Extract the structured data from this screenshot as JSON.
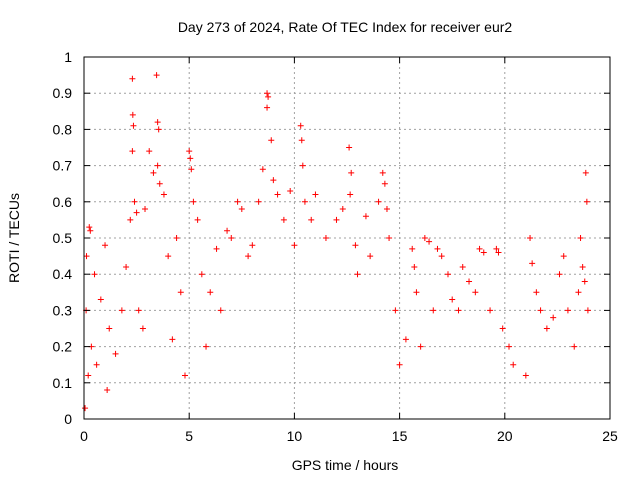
{
  "chart_data": {
    "type": "scatter",
    "title": "Day 273 of 2024, Rate Of TEC Index for receiver eur2",
    "xlabel": "GPS time / hours",
    "ylabel": "ROTI / TECUs",
    "xlim": [
      0,
      25
    ],
    "ylim": [
      0,
      1
    ],
    "xticks": [
      0,
      5,
      10,
      15,
      20,
      25
    ],
    "yticks": [
      0,
      0.1,
      0.2,
      0.3,
      0.4,
      0.5,
      0.6,
      0.7,
      0.8,
      0.9,
      1
    ],
    "xtick_labels": [
      "0",
      "5",
      "10",
      "15",
      "20",
      "25"
    ],
    "ytick_labels": [
      "0",
      "0.1",
      "0.2",
      "0.3",
      "0.4",
      "0.5",
      "0.6",
      "0.7",
      "0.8",
      "0.9",
      "1"
    ],
    "grid": true,
    "marker": "+",
    "color": "#ff0000",
    "series": [
      {
        "points": [
          [
            0.05,
            0.03
          ],
          [
            0.1,
            0.3
          ],
          [
            0.12,
            0.45
          ],
          [
            0.2,
            0.12
          ],
          [
            0.25,
            0.53
          ],
          [
            0.3,
            0.52
          ],
          [
            0.35,
            0.2
          ],
          [
            0.5,
            0.4
          ],
          [
            0.6,
            0.15
          ],
          [
            0.8,
            0.33
          ],
          [
            1.0,
            0.48
          ],
          [
            1.1,
            0.08
          ],
          [
            1.2,
            0.25
          ],
          [
            1.5,
            0.18
          ],
          [
            1.8,
            0.3
          ],
          [
            2.0,
            0.42
          ],
          [
            2.2,
            0.55
          ],
          [
            2.3,
            0.94
          ],
          [
            2.32,
            0.84
          ],
          [
            2.35,
            0.81
          ],
          [
            2.3,
            0.74
          ],
          [
            2.4,
            0.6
          ],
          [
            2.5,
            0.57
          ],
          [
            2.6,
            0.3
          ],
          [
            2.8,
            0.25
          ],
          [
            2.9,
            0.58
          ],
          [
            3.1,
            0.74
          ],
          [
            3.3,
            0.68
          ],
          [
            3.45,
            0.95
          ],
          [
            3.5,
            0.82
          ],
          [
            3.55,
            0.8
          ],
          [
            3.5,
            0.7
          ],
          [
            3.6,
            0.65
          ],
          [
            3.8,
            0.62
          ],
          [
            4.0,
            0.45
          ],
          [
            4.2,
            0.22
          ],
          [
            4.4,
            0.5
          ],
          [
            4.6,
            0.35
          ],
          [
            4.8,
            0.12
          ],
          [
            5.0,
            0.74
          ],
          [
            5.05,
            0.72
          ],
          [
            5.1,
            0.69
          ],
          [
            5.2,
            0.6
          ],
          [
            5.4,
            0.55
          ],
          [
            5.6,
            0.4
          ],
          [
            5.8,
            0.2
          ],
          [
            6.0,
            0.35
          ],
          [
            6.3,
            0.47
          ],
          [
            6.5,
            0.3
          ],
          [
            6.8,
            0.52
          ],
          [
            7.0,
            0.5
          ],
          [
            7.3,
            0.6
          ],
          [
            7.5,
            0.58
          ],
          [
            7.8,
            0.45
          ],
          [
            8.0,
            0.48
          ],
          [
            8.3,
            0.6
          ],
          [
            8.5,
            0.69
          ],
          [
            8.7,
            0.9
          ],
          [
            8.75,
            0.89
          ],
          [
            8.7,
            0.86
          ],
          [
            8.9,
            0.77
          ],
          [
            9.0,
            0.66
          ],
          [
            9.2,
            0.62
          ],
          [
            9.5,
            0.55
          ],
          [
            9.8,
            0.63
          ],
          [
            10.0,
            0.48
          ],
          [
            10.3,
            0.81
          ],
          [
            10.35,
            0.77
          ],
          [
            10.4,
            0.7
          ],
          [
            10.5,
            0.6
          ],
          [
            10.8,
            0.55
          ],
          [
            11.0,
            0.62
          ],
          [
            11.5,
            0.5
          ],
          [
            12.0,
            0.55
          ],
          [
            12.3,
            0.58
          ],
          [
            12.6,
            0.75
          ],
          [
            12.7,
            0.68
          ],
          [
            12.65,
            0.62
          ],
          [
            12.9,
            0.48
          ],
          [
            13.0,
            0.4
          ],
          [
            13.4,
            0.56
          ],
          [
            13.6,
            0.45
          ],
          [
            14.0,
            0.6
          ],
          [
            14.2,
            0.68
          ],
          [
            14.3,
            0.65
          ],
          [
            14.4,
            0.58
          ],
          [
            14.5,
            0.5
          ],
          [
            14.8,
            0.3
          ],
          [
            15.0,
            0.15
          ],
          [
            15.3,
            0.22
          ],
          [
            15.6,
            0.47
          ],
          [
            15.7,
            0.42
          ],
          [
            15.8,
            0.35
          ],
          [
            16.0,
            0.2
          ],
          [
            16.2,
            0.5
          ],
          [
            16.4,
            0.49
          ],
          [
            16.6,
            0.3
          ],
          [
            16.8,
            0.47
          ],
          [
            17.0,
            0.45
          ],
          [
            17.3,
            0.4
          ],
          [
            17.5,
            0.33
          ],
          [
            17.8,
            0.3
          ],
          [
            18.0,
            0.42
          ],
          [
            18.3,
            0.38
          ],
          [
            18.6,
            0.35
          ],
          [
            18.8,
            0.47
          ],
          [
            19.0,
            0.46
          ],
          [
            19.3,
            0.3
          ],
          [
            19.6,
            0.47
          ],
          [
            19.7,
            0.46
          ],
          [
            19.9,
            0.25
          ],
          [
            20.2,
            0.2
          ],
          [
            20.4,
            0.15
          ],
          [
            21.0,
            0.12
          ],
          [
            21.2,
            0.5
          ],
          [
            21.3,
            0.43
          ],
          [
            21.5,
            0.35
          ],
          [
            21.7,
            0.3
          ],
          [
            22.0,
            0.25
          ],
          [
            22.3,
            0.28
          ],
          [
            22.6,
            0.4
          ],
          [
            22.8,
            0.45
          ],
          [
            23.0,
            0.3
          ],
          [
            23.3,
            0.2
          ],
          [
            23.5,
            0.35
          ],
          [
            23.6,
            0.5
          ],
          [
            23.7,
            0.42
          ],
          [
            23.8,
            0.38
          ],
          [
            23.85,
            0.68
          ],
          [
            23.9,
            0.6
          ],
          [
            23.95,
            0.3
          ]
        ]
      }
    ]
  }
}
